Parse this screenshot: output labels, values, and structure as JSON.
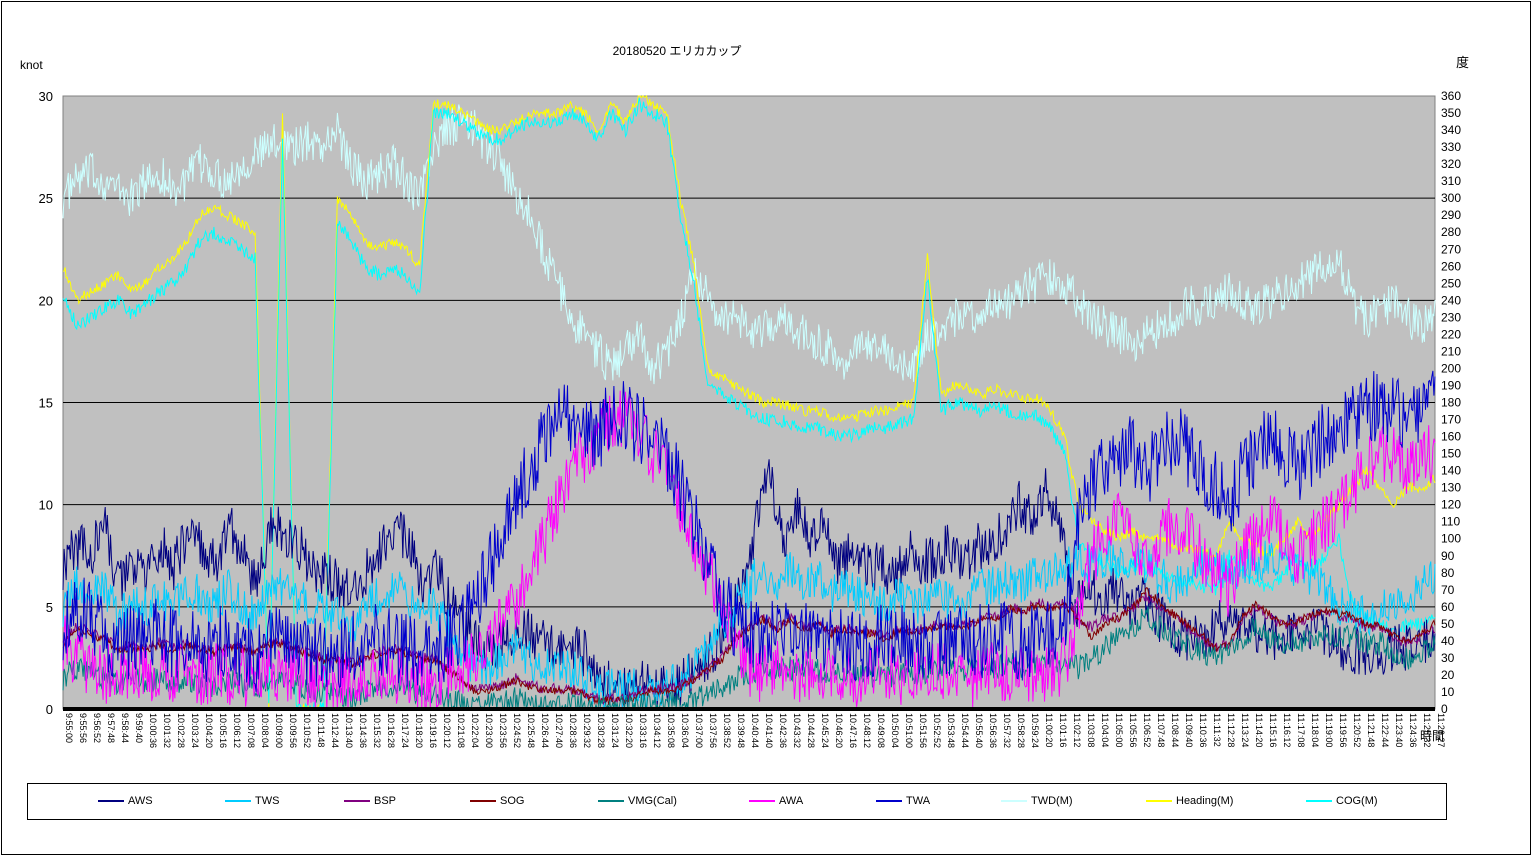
{
  "chart_data": {
    "type": "line",
    "title": "20180520 エリカカップ",
    "ylabel_left": "knot",
    "ylabel_right": "度",
    "xlabel": "時間",
    "y_left_ticks": [
      "0",
      "5",
      "10",
      "15",
      "20",
      "25",
      "30"
    ],
    "y_left_range": [
      0,
      30
    ],
    "y_right_ticks": [
      "0",
      "10",
      "20",
      "30",
      "40",
      "50",
      "60",
      "70",
      "80",
      "90",
      "100",
      "110",
      "120",
      "130",
      "140",
      "150",
      "160",
      "170",
      "180",
      "190",
      "200",
      "210",
      "220",
      "230",
      "240",
      "250",
      "260",
      "270",
      "280",
      "290",
      "300",
      "310",
      "320",
      "330",
      "340",
      "350",
      "360"
    ],
    "y_right_range": [
      0,
      360
    ],
    "x_ticks": [
      "9:55:00",
      "9:55:56",
      "9:56:52",
      "9:57:48",
      "9:58:44",
      "9:59:40",
      "10:00:36",
      "10:01:32",
      "10:02:28",
      "10:03:24",
      "10:04:20",
      "10:05:16",
      "10:06:12",
      "10:07:08",
      "10:08:04",
      "10:09:00",
      "10:09:56",
      "10:10:52",
      "10:11:48",
      "10:12:44",
      "10:13:40",
      "10:14:36",
      "10:15:32",
      "10:16:28",
      "10:17:24",
      "10:18:20",
      "10:19:16",
      "10:20:12",
      "10:21:08",
      "10:22:04",
      "10:23:00",
      "10:23:56",
      "10:24:52",
      "10:25:48",
      "10:26:44",
      "10:27:40",
      "10:28:36",
      "10:29:32",
      "10:30:28",
      "10:31:24",
      "10:32:20",
      "10:33:16",
      "10:34:12",
      "10:35:08",
      "10:36:04",
      "10:37:00",
      "10:37:56",
      "10:38:52",
      "10:39:48",
      "10:40:44",
      "10:41:40",
      "10:42:36",
      "10:43:32",
      "10:44:28",
      "10:45:24",
      "10:46:20",
      "10:47:16",
      "10:48:12",
      "10:49:08",
      "10:50:04",
      "10:51:00",
      "10:51:56",
      "10:52:52",
      "10:53:48",
      "10:54:44",
      "10:55:40",
      "10:56:36",
      "10:57:32",
      "10:58:28",
      "10:59:24",
      "11:00:20",
      "11:01:16",
      "11:02:12",
      "11:03:08",
      "11:04:04",
      "11:05:00",
      "11:05:56",
      "11:06:52",
      "11:07:48",
      "11:08:44",
      "11:09:40",
      "11:10:36",
      "11:11:32",
      "11:12:28",
      "11:13:24",
      "11:14:20",
      "11:15:16",
      "11:16:12",
      "11:17:08",
      "11:18:04",
      "11:19:00",
      "11:19:56",
      "11:20:52",
      "11:21:48",
      "11:22:44",
      "11:23:40",
      "11:24:36",
      "11:25:32",
      "11:26:27"
    ],
    "grid": "horizontal",
    "legend_position": "bottom",
    "plot_background": "#c0c0c0",
    "series": [
      {
        "name": "AWS",
        "axis": "left",
        "color": "#000080",
        "values": [
          7,
          8,
          7.5,
          9,
          6,
          7,
          6.5,
          8,
          7,
          8.5,
          8,
          7,
          9,
          7.5,
          6,
          9,
          8.5,
          8,
          7,
          6.5,
          6,
          5.5,
          7,
          8,
          9,
          8,
          6,
          7,
          5,
          4,
          3,
          3,
          3.5,
          4,
          3.5,
          3,
          3,
          3,
          2.5,
          1.5,
          1,
          1,
          1.5,
          1,
          1,
          1.5,
          2,
          3,
          4,
          6,
          9,
          12,
          8,
          10,
          8,
          9,
          7,
          8,
          7,
          7,
          6.5,
          8,
          7,
          7.5,
          8,
          7,
          8,
          8,
          9,
          10,
          9,
          11,
          8.5,
          5,
          6,
          5.5,
          6,
          5,
          5.5,
          4.5,
          4,
          3.5,
          3.5,
          4,
          4.5,
          4,
          4,
          3.5,
          3.5,
          4,
          4,
          3.5,
          3,
          3,
          2.5,
          2.5,
          3,
          3,
          3,
          3.5
        ]
      },
      {
        "name": "TWS",
        "axis": "left",
        "color": "#00ccff",
        "values": [
          5,
          6,
          5.5,
          6,
          4.5,
          5,
          5,
          5.5,
          5,
          6,
          5.5,
          5,
          6,
          5,
          4.5,
          6,
          6,
          5.5,
          5,
          5,
          4.5,
          4,
          5,
          5.5,
          6,
          5.5,
          5,
          5,
          4,
          3,
          2,
          2,
          2.5,
          3,
          2.5,
          2,
          2,
          2,
          1.5,
          1,
          1,
          1,
          1,
          1,
          1,
          1.5,
          2,
          3,
          4,
          5,
          6,
          7,
          6,
          7,
          6,
          6.5,
          5.5,
          6,
          5.5,
          5.5,
          5,
          5.5,
          5,
          5.5,
          5.5,
          5,
          5.5,
          6,
          6,
          6.5,
          6,
          7,
          6.5,
          7,
          7.5,
          7,
          7.5,
          7,
          7.5,
          7,
          6.5,
          6,
          6.5,
          7,
          7,
          6.5,
          7,
          7,
          7.5,
          7,
          7,
          6.5,
          6,
          5,
          5,
          4.5,
          5,
          5,
          5.5,
          6,
          6.5
        ]
      },
      {
        "name": "BSP",
        "axis": "left",
        "color": "#800080",
        "values": [
          3.5,
          4,
          3.8,
          3.5,
          3,
          3.2,
          3,
          3.3,
          3,
          3.2,
          3,
          2.8,
          3.2,
          3,
          2.8,
          3.3,
          3.2,
          3,
          2.8,
          2.5,
          2.5,
          2.3,
          2.5,
          2.8,
          3,
          2.8,
          2.5,
          2.5,
          2,
          1.5,
          1,
          1,
          1.2,
          1.5,
          1.2,
          1,
          1,
          1,
          0.8,
          0.5,
          0.5,
          0.5,
          0.8,
          1,
          1,
          1.2,
          1.5,
          2,
          2.5,
          3.5,
          4,
          4.5,
          4,
          4.5,
          4,
          4.2,
          3.8,
          4,
          3.8,
          3.8,
          3.5,
          4,
          3.8,
          4,
          4.2,
          4,
          4.2,
          4.5,
          4.5,
          5,
          4.8,
          5.2,
          5,
          5.2,
          4.5,
          4,
          4.5,
          4.5,
          5,
          5.5,
          5,
          4.5,
          4,
          3.5,
          3,
          3.2,
          4.5,
          5,
          4.5,
          4,
          4.2,
          4.5,
          4.8,
          4.5,
          4.5,
          4,
          4,
          3.5,
          3.2,
          3.5,
          4
        ]
      },
      {
        "name": "SOG",
        "axis": "left",
        "color": "#800000",
        "values": [
          3.2,
          3.8,
          3.6,
          3.4,
          2.8,
          3,
          2.9,
          3.1,
          2.9,
          3.1,
          2.9,
          2.7,
          3.1,
          2.9,
          2.7,
          3.2,
          3.1,
          2.9,
          2.7,
          2.4,
          2.4,
          2.2,
          2.4,
          2.7,
          2.9,
          2.7,
          2.4,
          2.4,
          1.9,
          1.4,
          0.9,
          0.9,
          1.1,
          1.4,
          1.1,
          0.9,
          0.9,
          0.9,
          0.7,
          0.4,
          0.4,
          0.4,
          0.7,
          0.9,
          0.9,
          1.1,
          1.4,
          1.9,
          2.4,
          3.4,
          3.9,
          4.4,
          3.9,
          4.4,
          3.9,
          4.1,
          3.7,
          3.9,
          3.7,
          3.7,
          3.4,
          3.9,
          3.7,
          3.9,
          4.1,
          3.9,
          4.1,
          4.4,
          4.4,
          4.9,
          4.7,
          5.1,
          4.9,
          5.1,
          4.4,
          3.5,
          4.2,
          4.5,
          5,
          5.8,
          5.2,
          4.6,
          4.1,
          3.6,
          3,
          3.1,
          4.6,
          5.1,
          4.6,
          4.1,
          4.3,
          4.6,
          4.9,
          4.6,
          4.6,
          4.1,
          4.1,
          3.6,
          3.3,
          3.6,
          4.2
        ]
      },
      {
        "name": "VMG(Cal)",
        "axis": "left",
        "color": "#008080",
        "values": [
          1.5,
          2,
          1.8,
          1.5,
          1.2,
          1.5,
          1.3,
          1.5,
          1.2,
          1.5,
          1.2,
          1,
          1.5,
          1.2,
          1,
          1.5,
          1.5,
          1.2,
          1,
          0.8,
          0.8,
          0.5,
          0.8,
          1,
          1.2,
          1,
          0.8,
          0.8,
          0.5,
          0.3,
          0.2,
          0.2,
          0.3,
          0.5,
          0.3,
          0.2,
          0.2,
          0.2,
          0.2,
          0.1,
          0.1,
          0.1,
          0.2,
          0.2,
          0.2,
          0.3,
          0.5,
          0.8,
          1,
          1.5,
          1.8,
          2,
          1.8,
          2,
          1.8,
          1.9,
          1.6,
          1.8,
          1.6,
          1.6,
          1.5,
          1.8,
          1.6,
          1.8,
          1.9,
          1.8,
          1.9,
          2,
          2,
          2.2,
          2.1,
          2.3,
          2.2,
          2.3,
          2,
          2.5,
          3,
          3.5,
          4,
          4.5,
          4,
          3.5,
          3,
          2.8,
          2.5,
          2.8,
          3.5,
          4,
          3.5,
          3.2,
          3.3,
          3.5,
          3.8,
          3.5,
          3.5,
          3.2,
          3.2,
          2.8,
          2.5,
          2.8,
          3.2
        ]
      },
      {
        "name": "AWA",
        "axis": "right",
        "color": "#ff00ff",
        "values": [
          40,
          30,
          25,
          20,
          25,
          22,
          20,
          25,
          22,
          20,
          18,
          22,
          20,
          18,
          15,
          20,
          22,
          20,
          18,
          15,
          15,
          18,
          20,
          22,
          20,
          18,
          15,
          15,
          20,
          25,
          30,
          40,
          50,
          60,
          80,
          100,
          120,
          140,
          150,
          160,
          170,
          170,
          160,
          150,
          140,
          120,
          100,
          80,
          60,
          40,
          25,
          20,
          25,
          22,
          20,
          25,
          22,
          20,
          18,
          20,
          22,
          20,
          18,
          20,
          22,
          20,
          18,
          20,
          22,
          20,
          18,
          20,
          22,
          25,
          60,
          90,
          100,
          110,
          100,
          90,
          100,
          110,
          100,
          90,
          80,
          70,
          90,
          100,
          110,
          100,
          90,
          100,
          110,
          120,
          130,
          140,
          150,
          150,
          140,
          150,
          150
        ]
      },
      {
        "name": "TWA",
        "axis": "right",
        "color": "#0000cc",
        "values": [
          50,
          60,
          55,
          45,
          35,
          40,
          38,
          45,
          40,
          38,
          35,
          40,
          38,
          35,
          30,
          40,
          42,
          38,
          35,
          30,
          30,
          35,
          40,
          42,
          38,
          35,
          30,
          30,
          40,
          45,
          60,
          80,
          100,
          120,
          140,
          160,
          170,
          170,
          165,
          160,
          175,
          170,
          165,
          160,
          150,
          130,
          110,
          90,
          70,
          50,
          45,
          40,
          45,
          42,
          40,
          45,
          42,
          40,
          38,
          40,
          42,
          40,
          38,
          40,
          42,
          40,
          38,
          40,
          42,
          40,
          38,
          40,
          42,
          45,
          110,
          130,
          140,
          150,
          150,
          140,
          150,
          160,
          150,
          140,
          130,
          120,
          140,
          150,
          160,
          150,
          140,
          150,
          160,
          165,
          170,
          175,
          178,
          175,
          170,
          175,
          178
        ]
      },
      {
        "name": "TWD(M)",
        "axis": "right",
        "color": "#ccffff",
        "values": [
          300,
          310,
          315,
          310,
          305,
          300,
          310,
          315,
          305,
          310,
          320,
          315,
          310,
          320,
          325,
          330,
          335,
          330,
          335,
          330,
          340,
          320,
          310,
          315,
          320,
          310,
          300,
          330,
          340,
          345,
          340,
          330,
          320,
          300,
          290,
          270,
          250,
          230,
          220,
          210,
          200,
          210,
          220,
          200,
          210,
          230,
          260,
          240,
          230,
          230,
          225,
          220,
          230,
          225,
          220,
          215,
          210,
          205,
          210,
          215,
          210,
          205,
          200,
          220,
          225,
          230,
          230,
          235,
          240,
          240,
          245,
          250,
          255,
          250,
          240,
          230,
          225,
          220,
          215,
          220,
          225,
          230,
          240,
          235,
          240,
          245,
          240,
          235,
          240,
          245,
          250,
          255,
          260,
          265,
          240,
          230,
          235,
          240,
          230,
          225,
          230
        ]
      },
      {
        "name": "Heading(M)",
        "axis": "right",
        "color": "#ffff00",
        "values": [
          260,
          240,
          245,
          250,
          255,
          245,
          250,
          260,
          265,
          275,
          290,
          295,
          290,
          285,
          280,
          0,
          350,
          0,
          0,
          0,
          300,
          290,
          275,
          270,
          275,
          270,
          260,
          355,
          355,
          350,
          345,
          340,
          340,
          345,
          350,
          350,
          350,
          355,
          350,
          340,
          355,
          345,
          360,
          355,
          350,
          300,
          260,
          200,
          195,
          190,
          185,
          180,
          180,
          178,
          175,
          175,
          172,
          170,
          172,
          175,
          175,
          178,
          180,
          265,
          185,
          190,
          188,
          185,
          188,
          185,
          183,
          182,
          175,
          160,
          120,
          110,
          105,
          100,
          105,
          100,
          100,
          95,
          95,
          92,
          90,
          110,
          100,
          95,
          90,
          100,
          110,
          100,
          110,
          120,
          130,
          140,
          130,
          120,
          130,
          130,
          135
        ]
      },
      {
        "name": "COG(M)",
        "axis": "right",
        "color": "#00ffff",
        "values": [
          245,
          225,
          230,
          235,
          240,
          232,
          238,
          245,
          250,
          260,
          275,
          280,
          275,
          270,
          265,
          0,
          335,
          0,
          0,
          0,
          285,
          275,
          260,
          255,
          260,
          255,
          245,
          350,
          350,
          345,
          340,
          335,
          335,
          340,
          345,
          345,
          345,
          350,
          345,
          335,
          350,
          340,
          355,
          350,
          345,
          290,
          250,
          190,
          185,
          180,
          175,
          170,
          170,
          168,
          165,
          165,
          162,
          160,
          162,
          165,
          165,
          168,
          170,
          255,
          175,
          180,
          178,
          175,
          178,
          175,
          173,
          172,
          165,
          150,
          100,
          90,
          85,
          80,
          85,
          80,
          80,
          75,
          75,
          72,
          70,
          90,
          80,
          75,
          70,
          80,
          90,
          80,
          90,
          100,
          60,
          55,
          50,
          45,
          50,
          50,
          55
        ]
      }
    ]
  }
}
